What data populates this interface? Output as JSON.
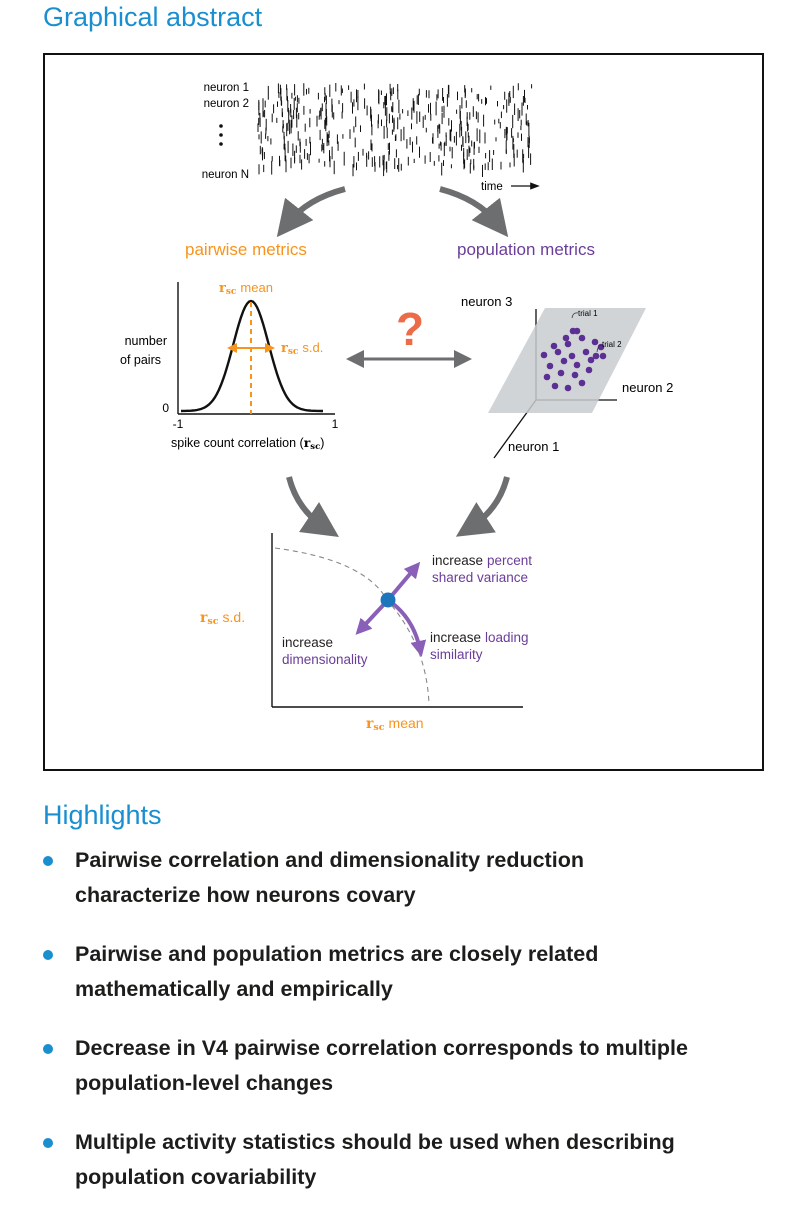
{
  "graphical_abstract_title": "Graphical abstract",
  "raster": {
    "neuron1": "neuron 1",
    "neuron2": "neuron 2",
    "neuronN": "neuron N",
    "time": "time"
  },
  "pairwise_label": "pairwise metrics",
  "population_label": "population metrics",
  "question_mark": "?",
  "histogram": {
    "rsc_symbol": "r",
    "rsc_sub": "sc",
    "mean_text": "mean",
    "sd_text": "s.d.",
    "ylabel_line1": "number",
    "ylabel_line2": "of pairs",
    "y_zero": "0",
    "x_min": "-1",
    "x_max": "1",
    "xlabel_prefix": "spike count correlation (",
    "xlabel_suffix": ")"
  },
  "scatter3d": {
    "neuron1": "neuron  1",
    "neuron2": "neuron  2",
    "neuron3": "neuron  3",
    "trial1": "trial 1",
    "trial2": "trial 2"
  },
  "bottom_plot": {
    "ylabel_text": "s.d.",
    "xlabel_text": "mean",
    "increase": "increase",
    "percent_shared_1": "percent",
    "percent_shared_2": "shared variance",
    "dimensionality": "dimensionality",
    "loading": "loading",
    "similarity": "similarity"
  },
  "colors": {
    "blue_heading": "#1a8fd0",
    "orange": "#f7941d",
    "purple": "#6a3d9a",
    "gray_arrow": "#6d6e70",
    "question": "#ec6c4a",
    "dot_blue": "#1d75bc"
  },
  "highlights": {
    "title": "Highlights",
    "items": [
      {
        "line1": "Pairwise correlation and dimensionality reduction",
        "line2": "characterize how neurons covary"
      },
      {
        "line1": "Pairwise and population metrics are closely related",
        "line2": "mathematically and empirically"
      },
      {
        "line1": "Decrease in V4 pairwise correlation corresponds to multiple",
        "line2": "population-level changes"
      },
      {
        "line1": "Multiple activity statistics should be used when describing",
        "line2": "population covariability"
      }
    ]
  }
}
